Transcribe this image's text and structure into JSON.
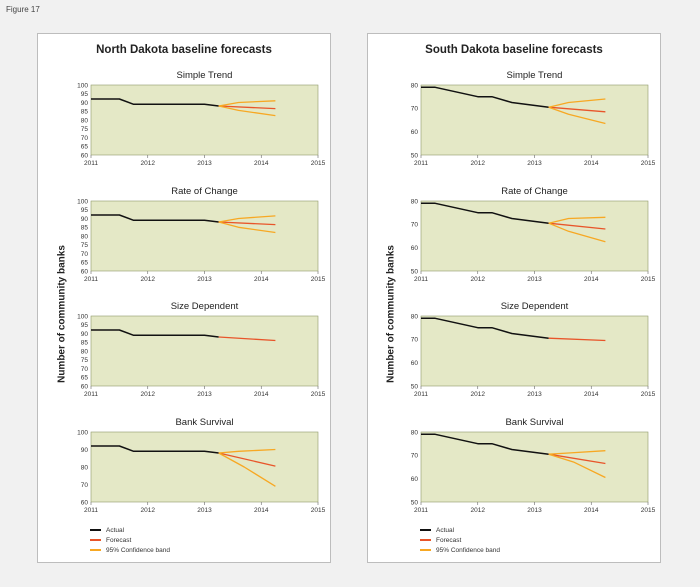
{
  "figure_label": "Figure 17",
  "y_axis_label": "Number of community banks",
  "colors": {
    "actual": "#111111",
    "forecast": "#e8552a",
    "band": "#f7a823",
    "plot_bg": "#e4e8c6"
  },
  "legend": [
    {
      "label": "Actual",
      "color": "#111111"
    },
    {
      "label": "Forecast",
      "color": "#e8552a"
    },
    {
      "label": "95% Confidence band",
      "color": "#f7a823"
    }
  ],
  "panels": [
    {
      "key": "nd",
      "title": "North Dakota baseline forecasts"
    },
    {
      "key": "sd",
      "title": "South Dakota baseline forecasts"
    }
  ],
  "chart_data": [
    {
      "type": "line",
      "state": "North Dakota",
      "title": "Simple Trend",
      "xlabel": "",
      "ylabel": "Number of community banks",
      "xlim": [
        2011,
        2015
      ],
      "ylim": [
        60,
        100
      ],
      "x_ticks": [
        2011,
        2012,
        2013,
        2014,
        2015
      ],
      "y_ticks": [
        60,
        65,
        70,
        75,
        80,
        85,
        90,
        95,
        100
      ],
      "series": [
        {
          "name": "Actual",
          "role": "actual",
          "points": [
            [
              2011,
              92
            ],
            [
              2011.5,
              92
            ],
            [
              2011.75,
              89
            ],
            [
              2013,
              89
            ],
            [
              2013.25,
              88
            ]
          ]
        },
        {
          "name": "Forecast",
          "role": "forecast",
          "points": [
            [
              2013.25,
              88
            ],
            [
              2014.25,
              86.5
            ]
          ]
        },
        {
          "name": "95% Confidence band",
          "role": "band_upper",
          "points": [
            [
              2013.25,
              88
            ],
            [
              2013.6,
              90
            ],
            [
              2014.25,
              91
            ]
          ]
        },
        {
          "name": "95% Confidence band",
          "role": "band_lower",
          "points": [
            [
              2013.25,
              88
            ],
            [
              2013.6,
              85.5
            ],
            [
              2014.25,
              82.5
            ]
          ]
        }
      ]
    },
    {
      "type": "line",
      "state": "North Dakota",
      "title": "Rate of Change",
      "xlabel": "",
      "ylabel": "Number of community banks",
      "xlim": [
        2011,
        2015
      ],
      "ylim": [
        60,
        100
      ],
      "x_ticks": [
        2011,
        2012,
        2013,
        2014,
        2015
      ],
      "y_ticks": [
        60,
        65,
        70,
        75,
        80,
        85,
        90,
        95,
        100
      ],
      "series": [
        {
          "name": "Actual",
          "role": "actual",
          "points": [
            [
              2011,
              92
            ],
            [
              2011.5,
              92
            ],
            [
              2011.75,
              89
            ],
            [
              2013,
              89
            ],
            [
              2013.25,
              88
            ]
          ]
        },
        {
          "name": "Forecast",
          "role": "forecast",
          "points": [
            [
              2013.25,
              88
            ],
            [
              2014.25,
              86.5
            ]
          ]
        },
        {
          "name": "95% Confidence band",
          "role": "band_upper",
          "points": [
            [
              2013.25,
              88
            ],
            [
              2013.6,
              90
            ],
            [
              2014.25,
              91.5
            ]
          ]
        },
        {
          "name": "95% Confidence band",
          "role": "band_lower",
          "points": [
            [
              2013.25,
              88
            ],
            [
              2013.6,
              85
            ],
            [
              2014.25,
              82
            ]
          ]
        }
      ]
    },
    {
      "type": "line",
      "state": "North Dakota",
      "title": "Size Dependent",
      "xlabel": "",
      "ylabel": "Number of community banks",
      "xlim": [
        2011,
        2015
      ],
      "ylim": [
        60,
        100
      ],
      "x_ticks": [
        2011,
        2012,
        2013,
        2014,
        2015
      ],
      "y_ticks": [
        60,
        65,
        70,
        75,
        80,
        85,
        90,
        95,
        100
      ],
      "series": [
        {
          "name": "Actual",
          "role": "actual",
          "points": [
            [
              2011,
              92
            ],
            [
              2011.5,
              92
            ],
            [
              2011.75,
              89
            ],
            [
              2013,
              89
            ],
            [
              2013.25,
              88
            ]
          ]
        },
        {
          "name": "Forecast",
          "role": "forecast",
          "points": [
            [
              2013.25,
              88
            ],
            [
              2014.25,
              86
            ]
          ]
        }
      ]
    },
    {
      "type": "line",
      "state": "North Dakota",
      "title": "Bank Survival",
      "xlabel": "",
      "ylabel": "Number of community banks",
      "xlim": [
        2011,
        2015
      ],
      "ylim": [
        60,
        100
      ],
      "x_ticks": [
        2011,
        2012,
        2013,
        2014,
        2015
      ],
      "y_ticks": [
        60,
        70,
        80,
        90,
        100
      ],
      "series": [
        {
          "name": "Actual",
          "role": "actual",
          "points": [
            [
              2011,
              92
            ],
            [
              2011.5,
              92
            ],
            [
              2011.75,
              89
            ],
            [
              2013,
              89
            ],
            [
              2013.25,
              88
            ]
          ]
        },
        {
          "name": "Forecast",
          "role": "forecast",
          "points": [
            [
              2013.25,
              88
            ],
            [
              2014.25,
              80.5
            ]
          ]
        },
        {
          "name": "95% Confidence band",
          "role": "band_upper",
          "points": [
            [
              2013.25,
              88
            ],
            [
              2013.6,
              89
            ],
            [
              2014.25,
              90
            ]
          ]
        },
        {
          "name": "95% Confidence band",
          "role": "band_lower",
          "points": [
            [
              2013.25,
              88
            ],
            [
              2013.7,
              80
            ],
            [
              2014.25,
              69
            ]
          ]
        }
      ]
    },
    {
      "type": "line",
      "state": "South Dakota",
      "title": "Simple Trend",
      "xlabel": "",
      "ylabel": "Number of community banks",
      "xlim": [
        2011,
        2015
      ],
      "ylim": [
        50,
        80
      ],
      "x_ticks": [
        2011,
        2012,
        2013,
        2014,
        2015
      ],
      "y_ticks": [
        50,
        60,
        70,
        80
      ],
      "series": [
        {
          "name": "Actual",
          "role": "actual",
          "points": [
            [
              2011,
              79
            ],
            [
              2011.25,
              79
            ],
            [
              2012,
              75
            ],
            [
              2012.25,
              75
            ],
            [
              2012.6,
              72.5
            ],
            [
              2013.25,
              70.5
            ]
          ]
        },
        {
          "name": "Forecast",
          "role": "forecast",
          "points": [
            [
              2013.25,
              70.5
            ],
            [
              2014.25,
              68.5
            ]
          ]
        },
        {
          "name": "95% Confidence band",
          "role": "band_upper",
          "points": [
            [
              2013.25,
              70.5
            ],
            [
              2013.6,
              72.5
            ],
            [
              2014.25,
              74
            ]
          ]
        },
        {
          "name": "95% Confidence band",
          "role": "band_lower",
          "points": [
            [
              2013.25,
              70.5
            ],
            [
              2013.6,
              67.5
            ],
            [
              2014.25,
              63.5
            ]
          ]
        }
      ]
    },
    {
      "type": "line",
      "state": "South Dakota",
      "title": "Rate of Change",
      "xlabel": "",
      "ylabel": "Number of community banks",
      "xlim": [
        2011,
        2015
      ],
      "ylim": [
        50,
        80
      ],
      "x_ticks": [
        2011,
        2012,
        2013,
        2014,
        2015
      ],
      "y_ticks": [
        50,
        60,
        70,
        80
      ],
      "series": [
        {
          "name": "Actual",
          "role": "actual",
          "points": [
            [
              2011,
              79
            ],
            [
              2011.25,
              79
            ],
            [
              2012,
              75
            ],
            [
              2012.25,
              75
            ],
            [
              2012.6,
              72.5
            ],
            [
              2013.25,
              70.5
            ]
          ]
        },
        {
          "name": "Forecast",
          "role": "forecast",
          "points": [
            [
              2013.25,
              70.5
            ],
            [
              2014.25,
              68
            ]
          ]
        },
        {
          "name": "95% Confidence band",
          "role": "band_upper",
          "points": [
            [
              2013.25,
              70.5
            ],
            [
              2013.6,
              72.5
            ],
            [
              2014.25,
              73
            ]
          ]
        },
        {
          "name": "95% Confidence band",
          "role": "band_lower",
          "points": [
            [
              2013.25,
              70.5
            ],
            [
              2013.6,
              67
            ],
            [
              2014.25,
              62.5
            ]
          ]
        }
      ]
    },
    {
      "type": "line",
      "state": "South Dakota",
      "title": "Size Dependent",
      "xlabel": "",
      "ylabel": "Number of community banks",
      "xlim": [
        2011,
        2015
      ],
      "ylim": [
        50,
        80
      ],
      "x_ticks": [
        2011,
        2012,
        2013,
        2014,
        2015
      ],
      "y_ticks": [
        50,
        60,
        70,
        80
      ],
      "series": [
        {
          "name": "Actual",
          "role": "actual",
          "points": [
            [
              2011,
              79
            ],
            [
              2011.25,
              79
            ],
            [
              2012,
              75
            ],
            [
              2012.25,
              75
            ],
            [
              2012.6,
              72.5
            ],
            [
              2013.25,
              70.5
            ]
          ]
        },
        {
          "name": "Forecast",
          "role": "forecast",
          "points": [
            [
              2013.25,
              70.5
            ],
            [
              2014.25,
              69.5
            ]
          ]
        }
      ]
    },
    {
      "type": "line",
      "state": "South Dakota",
      "title": "Bank Survival",
      "xlabel": "",
      "ylabel": "Number of community banks",
      "xlim": [
        2011,
        2015
      ],
      "ylim": [
        50,
        80
      ],
      "x_ticks": [
        2011,
        2012,
        2013,
        2014,
        2015
      ],
      "y_ticks": [
        50,
        60,
        70,
        80
      ],
      "series": [
        {
          "name": "Actual",
          "role": "actual",
          "points": [
            [
              2011,
              79
            ],
            [
              2011.25,
              79
            ],
            [
              2012,
              75
            ],
            [
              2012.25,
              75
            ],
            [
              2012.6,
              72.5
            ],
            [
              2013.25,
              70.5
            ]
          ]
        },
        {
          "name": "Forecast",
          "role": "forecast",
          "points": [
            [
              2013.25,
              70.5
            ],
            [
              2014.25,
              66.5
            ]
          ]
        },
        {
          "name": "95% Confidence band",
          "role": "band_upper",
          "points": [
            [
              2013.25,
              70.5
            ],
            [
              2013.6,
              71
            ],
            [
              2014.25,
              72
            ]
          ]
        },
        {
          "name": "95% Confidence band",
          "role": "band_lower",
          "points": [
            [
              2013.25,
              70.5
            ],
            [
              2013.7,
              67
            ],
            [
              2014.25,
              60.5
            ]
          ]
        }
      ]
    }
  ]
}
